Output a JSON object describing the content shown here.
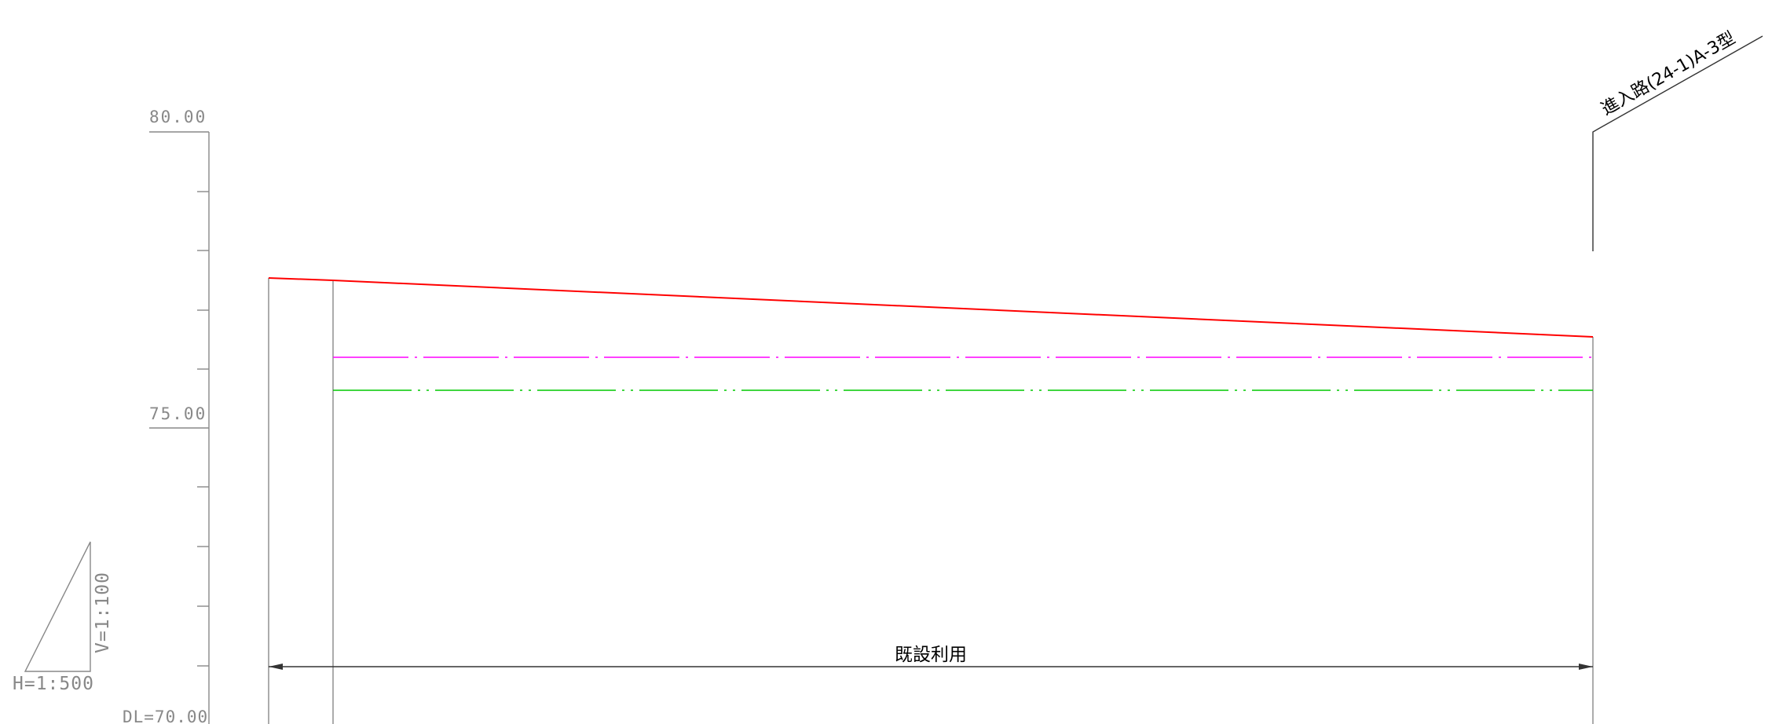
{
  "profile": {
    "axis_labels": {
      "top": "80.00",
      "mid": "75.00",
      "datum": "DL=70.00"
    },
    "scale": {
      "horizontal": "H=1:500",
      "vertical": "V=1:100"
    },
    "dimension_label": "既設利用",
    "road_label": "進入路(24-1)A-3型",
    "colors": {
      "ground_line": "#ff0000",
      "magenta_line": "#ff00ff",
      "green_line": "#00c800",
      "frame": "#888888"
    }
  }
}
